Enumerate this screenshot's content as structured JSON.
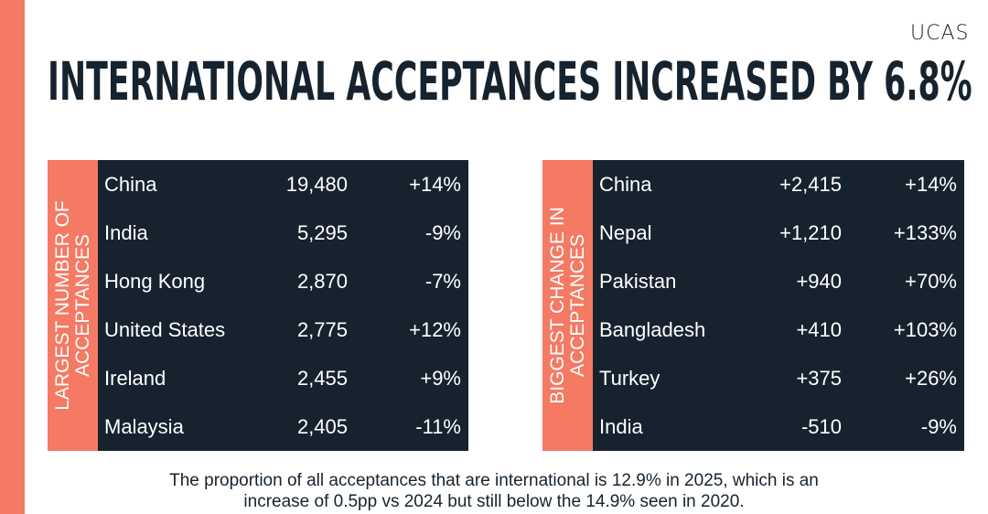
{
  "brand": {
    "logo_text": "UCAS",
    "accent_color": "#f47a63",
    "dark_color": "#16232f"
  },
  "title": "INTERNATIONAL ACCEPTANCES INCREASED BY 6.8%",
  "largest": {
    "label": "LARGEST NUMBER OF\nACCEPTANCES",
    "rows": [
      {
        "country": "China",
        "value": "19,480",
        "change": "+14%"
      },
      {
        "country": "India",
        "value": "5,295",
        "change": "-9%"
      },
      {
        "country": "Hong Kong",
        "value": "2,870",
        "change": "-7%"
      },
      {
        "country": "United States",
        "value": "2,775",
        "change": "+12%"
      },
      {
        "country": "Ireland",
        "value": "2,455",
        "change": "+9%"
      },
      {
        "country": "Malaysia",
        "value": "2,405",
        "change": "-11%"
      }
    ]
  },
  "biggest_change": {
    "label": "BIGGEST CHANGE IN\nACCEPTANCES",
    "rows": [
      {
        "country": "China",
        "value": "+2,415",
        "change": "+14%"
      },
      {
        "country": "Nepal",
        "value": "+1,210",
        "change": "+133%"
      },
      {
        "country": "Pakistan",
        "value": "+940",
        "change": "+70%"
      },
      {
        "country": "Bangladesh",
        "value": "+410",
        "change": "+103%"
      },
      {
        "country": "Turkey",
        "value": "+375",
        "change": "+26%"
      },
      {
        "country": "India",
        "value": "-510",
        "change": "-9%"
      }
    ]
  },
  "footnote": "The proportion of all acceptances that are international is 12.9% in 2025, which is an increase of 0.5pp vs 2024 but still below the 14.9% seen in 2020."
}
